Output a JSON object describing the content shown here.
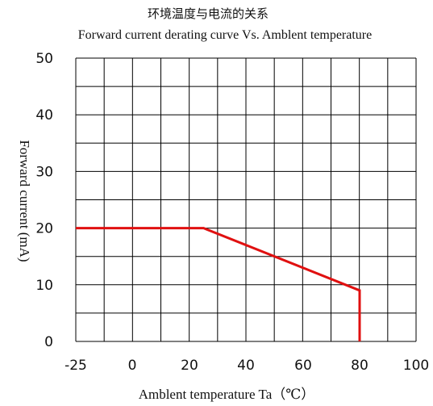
{
  "chart_data": {
    "type": "line",
    "title": "环境温度与电流的关系",
    "subtitle": "Forward current derating curve Vs. Amblent temperature",
    "xlabel": "Amblent temperature Ta（℃）",
    "ylabel": "Forward current (mA)",
    "xlim": [
      -25,
      100
    ],
    "ylim": [
      0,
      50
    ],
    "x_ticks": [
      "-25",
      "0",
      "20",
      "40",
      "60",
      "80",
      "100"
    ],
    "y_ticks": [
      "0",
      "10",
      "20",
      "30",
      "40",
      "50"
    ],
    "x_tick_values": [
      -25,
      0,
      20,
      40,
      60,
      80,
      100
    ],
    "y_tick_values": [
      0,
      10,
      20,
      30,
      40,
      50
    ],
    "grid": true,
    "series": [
      {
        "color": "#e01010",
        "x": [
          -25,
          25,
          80,
          80
        ],
        "y": [
          20,
          20,
          9,
          0
        ]
      }
    ]
  }
}
